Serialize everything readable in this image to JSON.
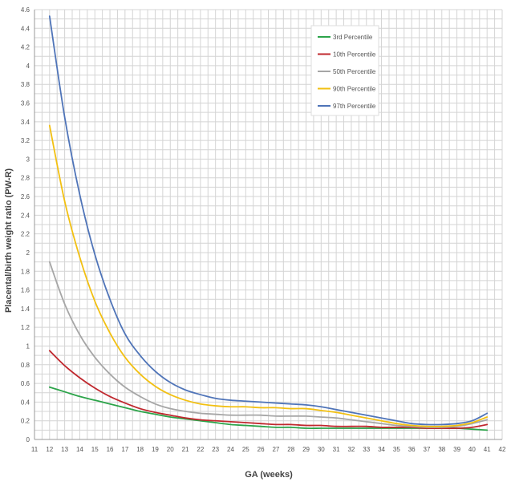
{
  "chart_data": {
    "type": "line",
    "xlabel": "GA (weeks)",
    "ylabel": "Placental/birth weight ratio (PW-R)",
    "xlim": [
      11,
      42
    ],
    "ylim": [
      0,
      4.6
    ],
    "x_ticks": [
      11,
      12,
      13,
      14,
      15,
      16,
      17,
      18,
      19,
      20,
      21,
      22,
      23,
      24,
      25,
      26,
      27,
      28,
      29,
      30,
      31,
      32,
      33,
      34,
      35,
      36,
      37,
      38,
      39,
      40,
      41,
      42
    ],
    "y_ticks": [
      0,
      0.2,
      0.4,
      0.6,
      0.8,
      1,
      1.2,
      1.4,
      1.6,
      1.8,
      2,
      2.2,
      2.4,
      2.6,
      2.8,
      3,
      3.2,
      3.4,
      3.6,
      3.8,
      4,
      4.2,
      4.4,
      4.6
    ],
    "grid": true,
    "legend_position": "top-right",
    "x": [
      12,
      13,
      14,
      15,
      16,
      17,
      18,
      19,
      20,
      21,
      22,
      23,
      24,
      25,
      26,
      27,
      28,
      29,
      30,
      31,
      32,
      33,
      34,
      35,
      36,
      37,
      38,
      39,
      40,
      41
    ],
    "series": [
      {
        "name": "3rd Percentile",
        "color": "#2ca44a",
        "values": [
          0.56,
          0.51,
          0.46,
          0.42,
          0.38,
          0.34,
          0.3,
          0.27,
          0.24,
          0.22,
          0.2,
          0.18,
          0.16,
          0.15,
          0.14,
          0.13,
          0.13,
          0.12,
          0.12,
          0.12,
          0.12,
          0.12,
          0.12,
          0.12,
          0.12,
          0.12,
          0.12,
          0.12,
          0.11,
          0.1
        ]
      },
      {
        "name": "10th Percentile",
        "color": "#c0282e",
        "values": [
          0.95,
          0.79,
          0.66,
          0.55,
          0.46,
          0.39,
          0.33,
          0.29,
          0.26,
          0.23,
          0.21,
          0.2,
          0.19,
          0.18,
          0.17,
          0.16,
          0.16,
          0.15,
          0.15,
          0.14,
          0.14,
          0.14,
          0.13,
          0.13,
          0.13,
          0.12,
          0.12,
          0.12,
          0.13,
          0.16
        ]
      },
      {
        "name": "50th Percentile",
        "color": "#a6a6a6",
        "values": [
          1.9,
          1.45,
          1.12,
          0.88,
          0.7,
          0.56,
          0.46,
          0.38,
          0.33,
          0.3,
          0.28,
          0.27,
          0.26,
          0.26,
          0.26,
          0.25,
          0.25,
          0.25,
          0.24,
          0.23,
          0.21,
          0.19,
          0.17,
          0.15,
          0.14,
          0.13,
          0.13,
          0.14,
          0.17,
          0.21
        ]
      },
      {
        "name": "90th Percentile",
        "color": "#f2c012",
        "values": [
          3.36,
          2.55,
          1.95,
          1.48,
          1.14,
          0.88,
          0.7,
          0.57,
          0.48,
          0.42,
          0.38,
          0.36,
          0.35,
          0.35,
          0.34,
          0.34,
          0.33,
          0.33,
          0.31,
          0.29,
          0.26,
          0.23,
          0.2,
          0.17,
          0.15,
          0.14,
          0.14,
          0.15,
          0.18,
          0.24
        ]
      },
      {
        "name": "97th Percentile",
        "color": "#4f74b8",
        "values": [
          4.53,
          3.45,
          2.62,
          1.98,
          1.5,
          1.13,
          0.9,
          0.73,
          0.61,
          0.53,
          0.48,
          0.44,
          0.42,
          0.41,
          0.4,
          0.39,
          0.38,
          0.37,
          0.35,
          0.32,
          0.29,
          0.26,
          0.23,
          0.2,
          0.17,
          0.16,
          0.16,
          0.17,
          0.2,
          0.28
        ]
      }
    ]
  }
}
